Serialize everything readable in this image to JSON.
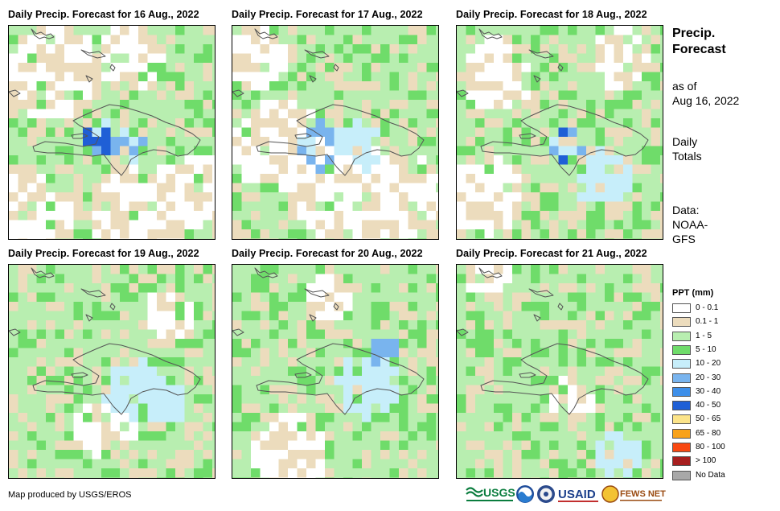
{
  "panels": [
    {
      "title": "Daily Precip. Forecast for 16 Aug., 2022"
    },
    {
      "title": "Daily Precip. Forecast for 17 Aug., 2022"
    },
    {
      "title": "Daily Precip. Forecast for 18 Aug., 2022"
    },
    {
      "title": "Daily Precip. Forecast for 19 Aug., 2022"
    },
    {
      "title": "Daily Precip. Forecast for 20 Aug., 2022"
    },
    {
      "title": "Daily Precip. Forecast for 21 Aug., 2022"
    }
  ],
  "sidebar": {
    "heading_line1": "Precip.",
    "heading_line2": "Forecast",
    "asof_line1": "as of",
    "asof_line2": "Aug 16, 2022",
    "totals_line1": "Daily",
    "totals_line2": "Totals",
    "data_line1": "Data:",
    "data_line2": "NOAA-",
    "data_line3": "GFS"
  },
  "legend": {
    "title": "PPT (mm)",
    "items": [
      {
        "label": "0 - 0.1",
        "color": "#ffffff"
      },
      {
        "label": "0.1 - 1",
        "color": "#ecdcbd"
      },
      {
        "label": "1 - 5",
        "color": "#b8eeb0"
      },
      {
        "label": "5 - 10",
        "color": "#6fdc6a"
      },
      {
        "label": "10 - 20",
        "color": "#c7eefa"
      },
      {
        "label": "20 - 30",
        "color": "#79b4ee"
      },
      {
        "label": "30 - 40",
        "color": "#3e8fe9"
      },
      {
        "label": "40 - 50",
        "color": "#1f5fd6"
      },
      {
        "label": "50 - 65",
        "color": "#fce489"
      },
      {
        "label": "65 - 80",
        "color": "#f9a21a"
      },
      {
        "label": "80 - 100",
        "color": "#f94811"
      },
      {
        "label": "> 100",
        "color": "#a71f1f"
      },
      {
        "label": "No Data",
        "color": "#a8a8a8"
      }
    ]
  },
  "footer": {
    "credit": "Map produced by USGS/EROS",
    "logos": [
      "USGS",
      "NOAA",
      "USAID",
      "FEWS NET"
    ]
  }
}
